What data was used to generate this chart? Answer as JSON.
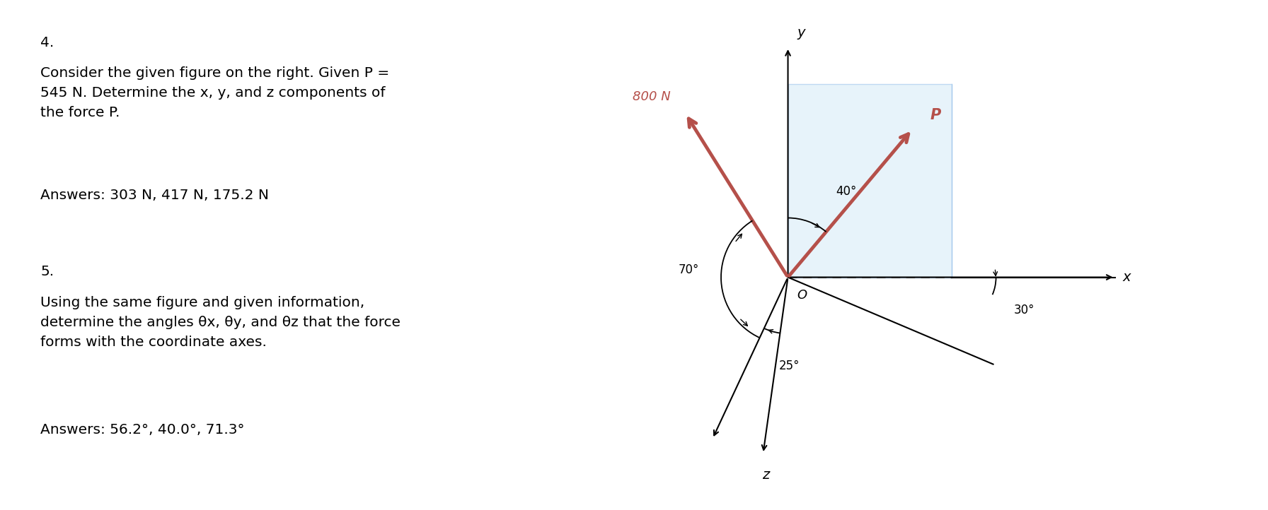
{
  "bg_color": "#ffffff",
  "fig_width": 17.92,
  "fig_height": 7.22,
  "text_left": {
    "q4_number": "4.",
    "q4_body": "Consider the given figure on the right. Given P =\n545 N. Determine the x, y, and z components of\nthe force P.",
    "q4_answer": "Answers: 303 N, 417 N, 175.2 N",
    "q5_number": "5.",
    "q5_body": "Using the same figure and given information,\ndetermine the angles θx, θy, and θz that the force\nforms with the coordinate axes.",
    "q5_answer": "Answers: 56.2°, 40.0°, 71.3°"
  },
  "diagram": {
    "force_800_color": "#b5504a",
    "force_P_color": "#b5504a",
    "shade_color": "#ddeef8",
    "shade_edge_color": "#aaccee",
    "axis_color": "#000000",
    "dashed_color": "#555555",
    "arc_color": "#000000",
    "label_800N": "800 N",
    "label_P": "P",
    "label_y": "y",
    "label_x": "x",
    "label_z": "z",
    "label_O": "O",
    "label_70": "70°",
    "label_40": "40°",
    "label_25": "25°",
    "label_30": "30°"
  }
}
